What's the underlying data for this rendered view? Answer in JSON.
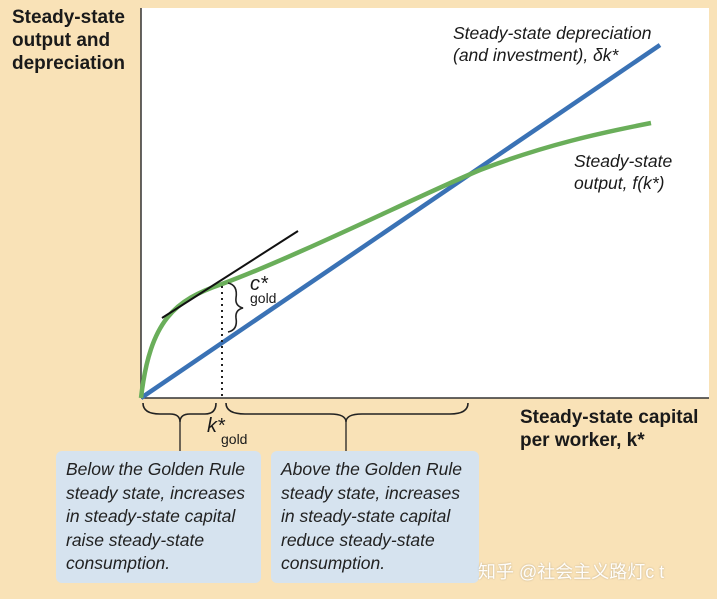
{
  "axes": {
    "ylabel": "Steady-state\noutput and\ndepreciation",
    "xlabel": "Steady-state capital\nper worker, k*"
  },
  "curves": {
    "depreciation_label": "Steady-state depreciation\n(and investment), δk*",
    "output_label": "Steady-state\noutput, f(k*)",
    "depreciation_color": "#3a72b5",
    "output_color": "#6aae5a",
    "tangent_color": "#111111"
  },
  "markers": {
    "c_gold": "c*",
    "c_gold_sub": "gold",
    "k_gold": "k*",
    "k_gold_sub": "gold"
  },
  "boxes": {
    "below": "Below the Golden Rule\nsteady state, increases\nin steady-state capital\nraise steady-state\nconsumption.",
    "above": "Above the Golden Rule\nsteady state, increases\nin steady-state capital\nreduce steady-state\nconsumption."
  },
  "watermark": "知乎 @社会主义路灯c t"
}
